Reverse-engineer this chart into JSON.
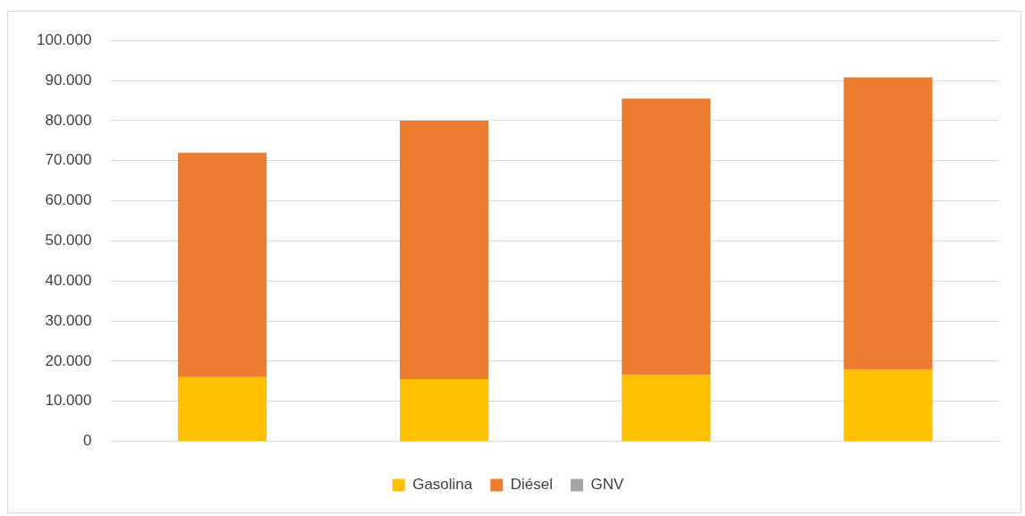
{
  "chart_data": {
    "type": "bar",
    "stacked": true,
    "categories": [
      null,
      null,
      null,
      null
    ],
    "series": [
      {
        "name": "Gasolina",
        "color": "#ffc000",
        "values": [
          16000,
          15500,
          16500,
          18000
        ]
      },
      {
        "name": "Diésel",
        "color": "#ed7d31",
        "values": [
          56000,
          64500,
          69000,
          72800
        ]
      },
      {
        "name": "GNV",
        "color": "#a5a5a5",
        "values": [
          0,
          0,
          0,
          0
        ]
      }
    ],
    "ylim": [
      0,
      100000
    ],
    "yticks": [
      {
        "value": 0,
        "label": "0"
      },
      {
        "value": 10000,
        "label": "10.000"
      },
      {
        "value": 20000,
        "label": "20.000"
      },
      {
        "value": 30000,
        "label": "30.000"
      },
      {
        "value": 40000,
        "label": "40.000"
      },
      {
        "value": 50000,
        "label": "50.000"
      },
      {
        "value": 60000,
        "label": "60.000"
      },
      {
        "value": 70000,
        "label": "70.000"
      },
      {
        "value": 80000,
        "label": "80.000"
      },
      {
        "value": 90000,
        "label": "90.000"
      },
      {
        "value": 100000,
        "label": "100.000"
      }
    ],
    "grid": "y",
    "legend": "bottom"
  }
}
